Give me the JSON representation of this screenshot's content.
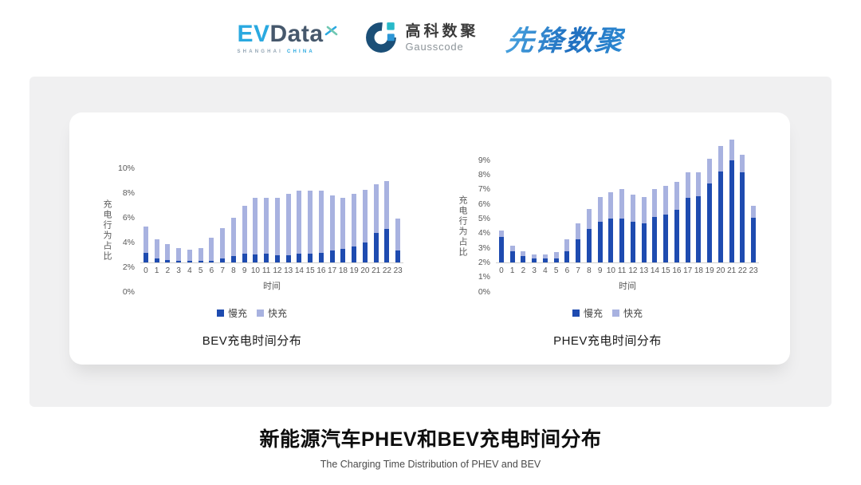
{
  "header": {
    "evdata": {
      "prefix": "EV",
      "suffix": "Data",
      "tagline_left": "SHANGHAI",
      "tagline_right": "CHINA"
    },
    "gausscode": {
      "name_cn": "高科数聚",
      "name_en": "Gausscode"
    },
    "pioneer_wordmark": "先锋数聚"
  },
  "chart_data": [
    {
      "type": "bar",
      "stacked": true,
      "title": "BEV充电时间分布",
      "xlabel": "时间",
      "ylabel": "充电行为占比",
      "ylim": [
        0,
        10
      ],
      "y_tick_step": 2,
      "y_tick_suffix": "%",
      "grid": false,
      "legend_position": "bottom",
      "categories": [
        "0",
        "1",
        "2",
        "3",
        "4",
        "5",
        "6",
        "7",
        "8",
        "9",
        "10",
        "11",
        "12",
        "13",
        "14",
        "15",
        "16",
        "17",
        "18",
        "19",
        "20",
        "21",
        "22",
        "23"
      ],
      "series": [
        {
          "name": "慢充",
          "color": "#1e4bb0",
          "values": [
            0.8,
            0.35,
            0.2,
            0.1,
            0.1,
            0.1,
            0.15,
            0.35,
            0.5,
            0.7,
            0.65,
            0.7,
            0.6,
            0.6,
            0.7,
            0.7,
            0.8,
            1.0,
            1.1,
            1.3,
            1.6,
            2.4,
            2.7,
            0.95
          ]
        },
        {
          "name": "快充",
          "color": "#a8b2e0",
          "values": [
            2.1,
            1.55,
            1.3,
            1.05,
            0.95,
            1.05,
            1.85,
            2.45,
            3.1,
            3.9,
            4.55,
            4.5,
            4.6,
            4.95,
            5.1,
            5.1,
            5.0,
            4.45,
            4.15,
            4.25,
            4.3,
            3.95,
            3.85,
            2.6
          ]
        }
      ]
    },
    {
      "type": "bar",
      "stacked": true,
      "title": "PHEV充电时间分布",
      "xlabel": "时间",
      "ylabel": "充电行为占比",
      "ylim": [
        0,
        9
      ],
      "y_tick_step": 1,
      "y_tick_suffix": "%",
      "grid": false,
      "legend_position": "bottom",
      "categories": [
        "0",
        "1",
        "2",
        "3",
        "4",
        "5",
        "6",
        "7",
        "8",
        "9",
        "10",
        "11",
        "12",
        "13",
        "14",
        "15",
        "16",
        "17",
        "18",
        "19",
        "20",
        "21",
        "22",
        "23"
      ],
      "series": [
        {
          "name": "慢充",
          "color": "#1e4bb0",
          "values": [
            1.75,
            0.75,
            0.45,
            0.25,
            0.25,
            0.3,
            0.75,
            1.6,
            2.3,
            2.8,
            3.0,
            3.0,
            2.8,
            2.65,
            3.1,
            3.3,
            3.6,
            4.4,
            4.55,
            5.4,
            6.2,
            7.0,
            6.15,
            3.05
          ]
        },
        {
          "name": "快充",
          "color": "#a8b2e0",
          "values": [
            0.45,
            0.4,
            0.3,
            0.3,
            0.3,
            0.4,
            0.85,
            1.1,
            1.35,
            1.7,
            1.8,
            2.0,
            1.85,
            1.85,
            1.9,
            1.95,
            1.9,
            1.75,
            1.6,
            1.7,
            1.75,
            1.4,
            1.2,
            0.8
          ]
        }
      ]
    }
  ],
  "footer": {
    "title": "新能源汽车PHEV和BEV充电时间分布",
    "subtitle": "The Charging Time Distribution of PHEV and BEV"
  }
}
